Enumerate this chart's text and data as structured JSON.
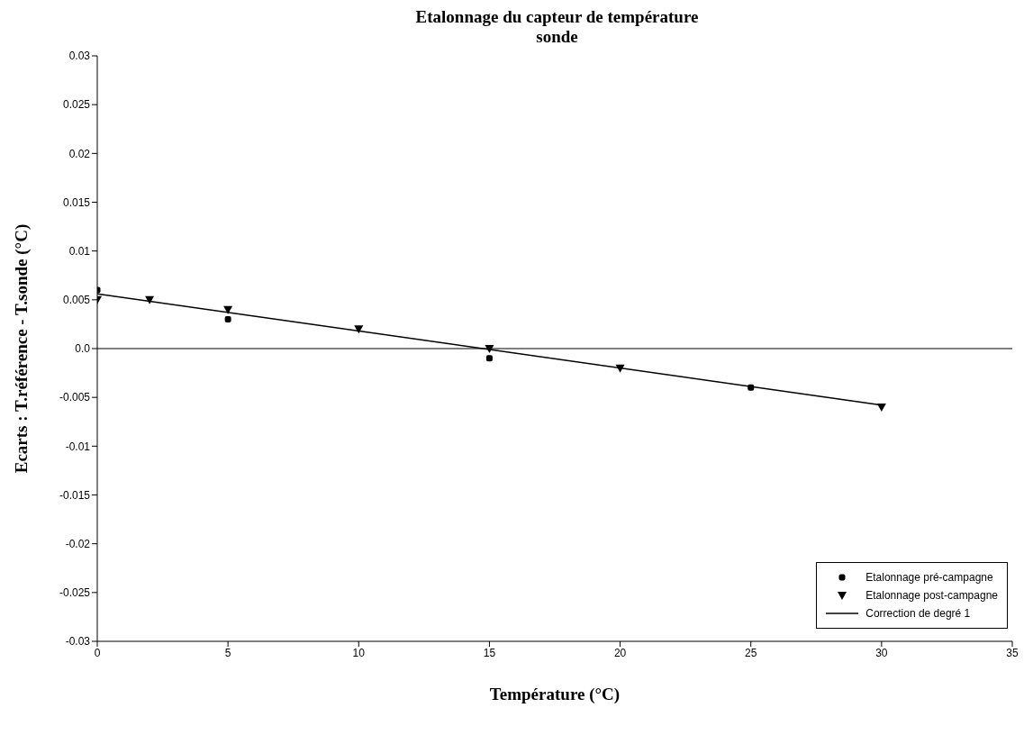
{
  "chart_data": {
    "type": "scatter",
    "title": "Etalonnage du capteur de température",
    "subtitle": "sonde",
    "xlabel": "Température (°C)",
    "ylabel": "Ecarts : T.référence - T.sonde (°C)",
    "xlim": [
      0,
      35
    ],
    "xticks": [
      0,
      5,
      10,
      15,
      20,
      25,
      30,
      35
    ],
    "ylim": [
      -0.03,
      0.03
    ],
    "yticks": [
      -0.03,
      -0.025,
      -0.02,
      -0.015,
      -0.01,
      -0.005,
      {
        "value": 0,
        "label": "0.0"
      },
      0.005,
      0.01,
      0.015,
      0.02,
      0.025,
      0.03
    ],
    "grid": false,
    "legend": "bottom right",
    "ref_lines": [
      {
        "axis": "y",
        "value": 0,
        "color": "#000000"
      }
    ],
    "series": [
      {
        "name": "Etalonnage pré-campagne",
        "marker": "square",
        "color": "#000000",
        "x": [
          0,
          5,
          15,
          25
        ],
        "values": [
          0.006,
          0.003,
          -0.001,
          -0.004
        ]
      },
      {
        "name": "Etalonnage post-campagne",
        "marker": "triangle",
        "color": "#000000",
        "x": [
          0,
          2,
          5,
          10,
          15,
          20,
          30
        ],
        "values": [
          0.005,
          0.005,
          0.004,
          0.002,
          0,
          -0.002,
          -0.006
        ]
      },
      {
        "name": "Correction de degré 1",
        "type": "line",
        "marker": "none",
        "line_style": "solid",
        "color": "#000000",
        "x": [
          0,
          30
        ],
        "values": [
          0.0056,
          -0.0058
        ]
      }
    ]
  }
}
